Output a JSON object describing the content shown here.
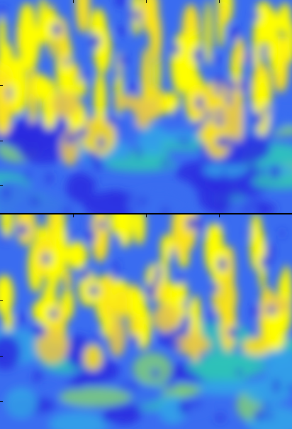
{
  "image": {
    "kind": "stacked scalogram panels",
    "panels": 2,
    "colormap": [
      "#2a2ce0",
      "#3a6cf0",
      "#33a6e8",
      "#2ec4b8",
      "#7fd07a",
      "#e6c64a",
      "#fbe41a",
      "#ffff00"
    ]
  }
}
